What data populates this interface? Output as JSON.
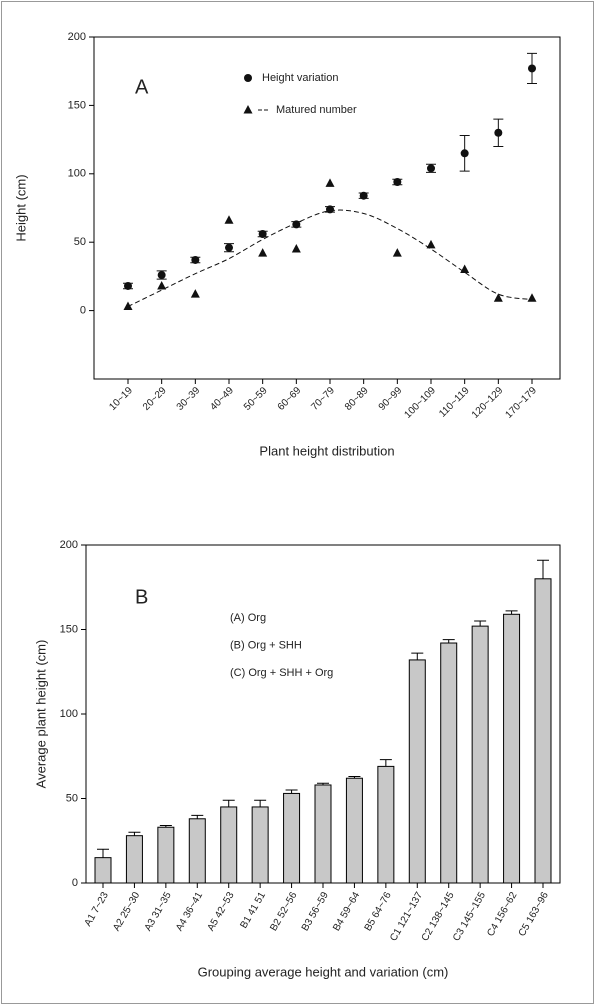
{
  "chart_data": [
    {
      "type": "scatter",
      "panel": "A",
      "xlabel": "Plant height distribution",
      "ylabel": "Height (cm)",
      "categories": [
        "10~19",
        "20~29",
        "30~39",
        "40~49",
        "50~59",
        "60~69",
        "70~79",
        "80~89",
        "90~99",
        "100~109",
        "110~119",
        "120~129",
        "170~179"
      ],
      "series": [
        {
          "name": "Height variation",
          "marker": "circle",
          "color": "#111111",
          "values": [
            18,
            26,
            37,
            46,
            56,
            63,
            74,
            84,
            94,
            104,
            115,
            130,
            177
          ],
          "errors": [
            2,
            3,
            2,
            3,
            2,
            2,
            2,
            2,
            2,
            3,
            13,
            10,
            11
          ]
        },
        {
          "name": "Matured number",
          "marker": "triangle",
          "color": "#111111",
          "values": [
            3,
            18,
            12,
            66,
            42,
            45,
            93,
            null,
            42,
            48,
            30,
            9,
            9
          ],
          "curve_values": [
            3,
            15,
            27,
            38,
            52,
            64,
            73,
            71,
            60,
            45,
            28,
            12,
            8
          ]
        }
      ],
      "ylim": [
        -50,
        200
      ],
      "yticks": [
        0,
        50,
        100,
        150,
        200
      ]
    },
    {
      "type": "bar",
      "panel": "B",
      "xlabel": "Grouping average height and variation (cm)",
      "ylabel": "Average plant height (cm)",
      "annotations": [
        "(A)  Org",
        "(B)  Org + SHH",
        "(C)  Org + SHH + Org"
      ],
      "categories": [
        "A1 7~23",
        "A2 25~30",
        "A3 31~35",
        "A4 36~41",
        "A5 42~53",
        "B1 41 51",
        "B2 52~56",
        "B3 56~59",
        "B4 59~64",
        "B5 64~76",
        "C1 121~137",
        "C2 138~145",
        "C3 145~155",
        "C4 156~62",
        "C5 163~96"
      ],
      "values": [
        15,
        28,
        33,
        38,
        45,
        45,
        53,
        58,
        62,
        69,
        132,
        142,
        152,
        159,
        180
      ],
      "errors": [
        5,
        2,
        1,
        2,
        4,
        4,
        2,
        1,
        1,
        4,
        4,
        2,
        3,
        2,
        11
      ],
      "color": "#c8c8c8",
      "ylim": [
        0,
        200
      ],
      "yticks": [
        0,
        50,
        100,
        150,
        200
      ]
    }
  ]
}
